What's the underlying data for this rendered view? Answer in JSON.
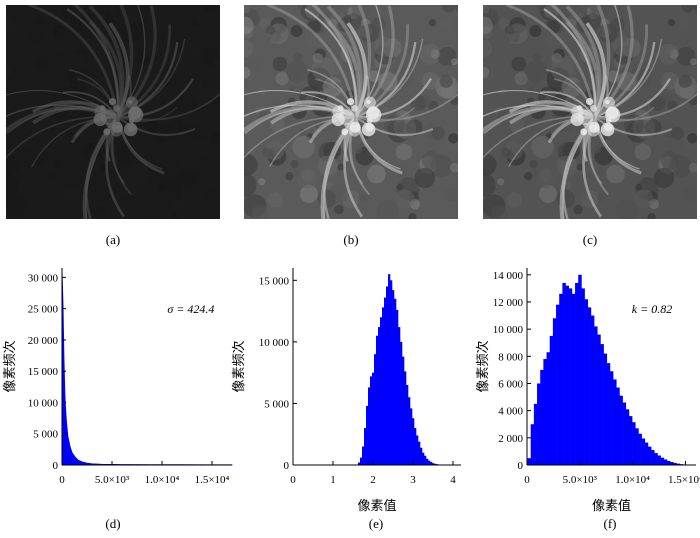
{
  "captions": [
    "(a)",
    "(b)",
    "(c)",
    "(d)",
    "(e)",
    "(f)"
  ],
  "images": [
    {
      "brightness": 0.08
    },
    {
      "brightness": 1.0
    },
    {
      "brightness": 0.9
    }
  ],
  "chart_data": [
    {
      "type": "area",
      "ylabel": "像素频次",
      "xlabel": "",
      "annotation": "σ = 424.4",
      "xlim": [
        0,
        17000
      ],
      "ylim": [
        0,
        31500
      ],
      "yticks": [
        0,
        5000,
        10000,
        15000,
        20000,
        25000,
        30000
      ],
      "ytick_labels": [
        "0",
        "5 000",
        "10 000",
        "15 000",
        "20 000",
        "25 000",
        "30 000"
      ],
      "xticks": [
        0,
        5000,
        10000,
        15000
      ],
      "xtick_labels": [
        "0",
        "5.0×10³",
        "1.0×10⁴",
        "1.5×10⁴"
      ],
      "color": "#0000ff",
      "x": [
        0,
        100,
        200,
        300,
        400,
        500,
        600,
        800,
        1000,
        1300,
        1600,
        2000,
        2500,
        3000,
        4000,
        6000,
        9000,
        12000,
        15000,
        17000
      ],
      "y": [
        31500,
        26000,
        17000,
        11000,
        8000,
        6000,
        4500,
        3000,
        2000,
        1300,
        800,
        500,
        300,
        200,
        120,
        80,
        60,
        50,
        40,
        30
      ]
    },
    {
      "type": "bar",
      "ylabel": "像素频次",
      "xlabel": "像素值",
      "xlim": [
        0,
        4.2
      ],
      "ylim": [
        0,
        16000
      ],
      "yticks": [
        0,
        5000,
        10000,
        15000
      ],
      "ytick_labels": [
        "0",
        "5 000",
        "10 000",
        "15 000"
      ],
      "xticks": [
        0,
        1,
        2,
        3,
        4
      ],
      "xtick_labels": [
        "0",
        "1",
        "2",
        "3",
        "4"
      ],
      "color": "#0000ff",
      "x": [
        1.65,
        1.7,
        1.75,
        1.8,
        1.85,
        1.9,
        1.95,
        2.0,
        2.05,
        2.1,
        2.15,
        2.2,
        2.25,
        2.3,
        2.35,
        2.4,
        2.45,
        2.5,
        2.55,
        2.6,
        2.65,
        2.7,
        2.75,
        2.8,
        2.85,
        2.9,
        2.95,
        3.0,
        3.05,
        3.1,
        3.15,
        3.2,
        3.25,
        3.3,
        3.35,
        3.4,
        3.45,
        3.5,
        3.55,
        3.6,
        3.65,
        3.7,
        3.75
      ],
      "values": [
        200,
        600,
        1500,
        3000,
        4800,
        6300,
        7200,
        7500,
        9000,
        10500,
        11200,
        12000,
        12800,
        13600,
        14500,
        15500,
        15000,
        14200,
        13500,
        12600,
        11200,
        10000,
        8800,
        7600,
        6500,
        5500,
        4600,
        3800,
        3000,
        2400,
        1900,
        1400,
        1000,
        750,
        500,
        350,
        250,
        150,
        100,
        70,
        40,
        25,
        10
      ]
    },
    {
      "type": "bar",
      "ylabel": "像素频次",
      "xlabel": "像素值",
      "annotation": "k = 0.82",
      "xlim": [
        0,
        16000
      ],
      "ylim": [
        0,
        14500
      ],
      "yticks": [
        0,
        2000,
        4000,
        6000,
        8000,
        10000,
        12000,
        14000
      ],
      "ytick_labels": [
        "0",
        "2 000",
        "4 000",
        "6 000",
        "8 000",
        "10 000",
        "12 000",
        "14 000"
      ],
      "xticks": [
        0,
        5000,
        10000,
        15000
      ],
      "xtick_labels": [
        "0",
        "5.0×10³",
        "1.0×10⁴",
        "1.5×10⁴"
      ],
      "color": "#0000ff",
      "x": [
        200,
        500,
        800,
        1100,
        1400,
        1700,
        2000,
        2300,
        2600,
        2900,
        3200,
        3500,
        3800,
        4100,
        4400,
        4700,
        5000,
        5300,
        5600,
        5900,
        6200,
        6500,
        6800,
        7100,
        7400,
        7700,
        8000,
        8300,
        8600,
        8900,
        9200,
        9500,
        9800,
        10100,
        10400,
        10700,
        11000,
        11300,
        11600,
        11900,
        12200,
        12500,
        12800,
        13100,
        13400,
        13700,
        14000,
        14300,
        14600,
        14900,
        15200,
        15500
      ],
      "values": [
        500,
        3000,
        4500,
        6000,
        7000,
        7800,
        8300,
        9500,
        10800,
        11800,
        12600,
        13400,
        13200,
        13000,
        12600,
        13400,
        14000,
        13000,
        12200,
        11600,
        11000,
        10200,
        9600,
        8900,
        8200,
        7500,
        6900,
        6300,
        5700,
        5100,
        4600,
        4100,
        3600,
        3150,
        2700,
        2300,
        1950,
        1650,
        1350,
        1100,
        880,
        700,
        540,
        410,
        300,
        220,
        150,
        100,
        65,
        40,
        20,
        10
      ]
    }
  ]
}
